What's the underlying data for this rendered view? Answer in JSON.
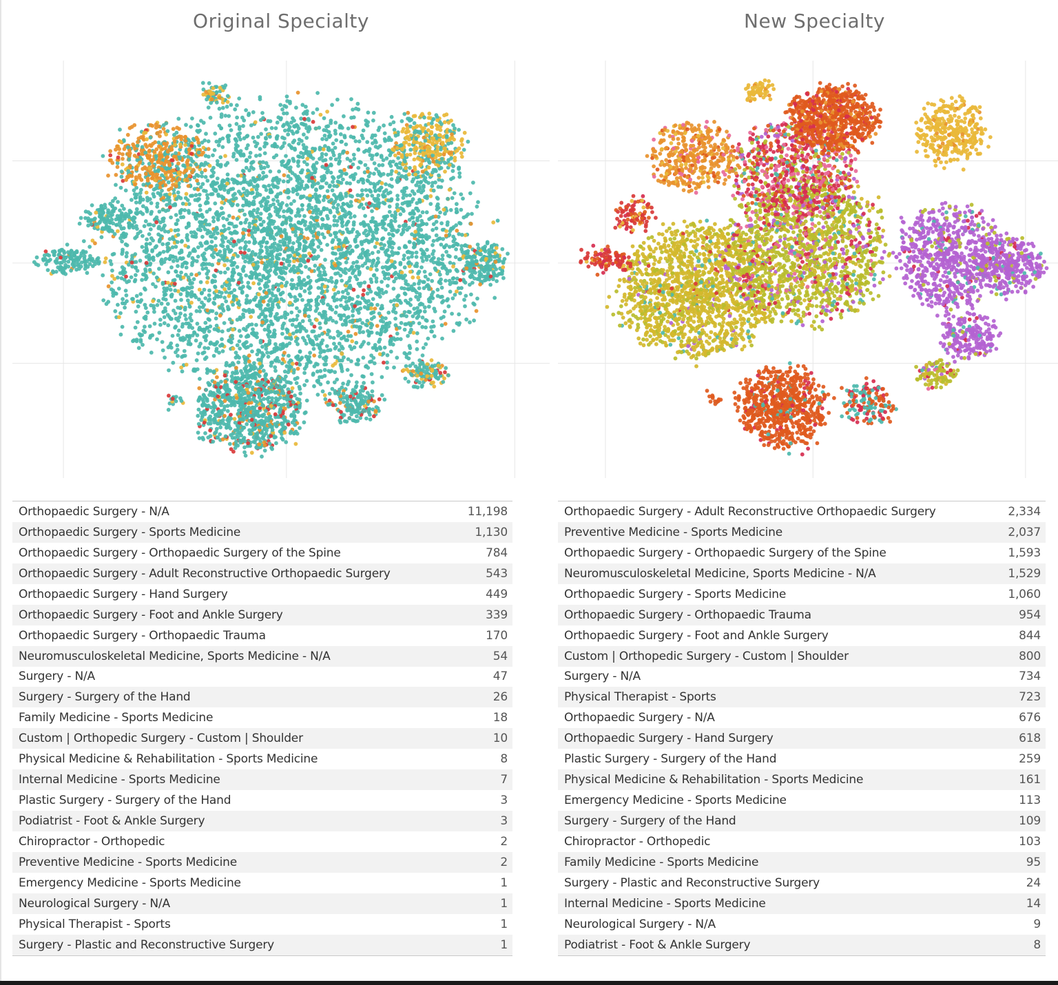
{
  "panels": {
    "left_title": "Original Specialty",
    "right_title": "New Specialty"
  },
  "colors": {
    "teal": "#4db8ac",
    "orange": "#e8922e",
    "gold": "#e9b83a",
    "red": "#d93a3a",
    "dark_orange": "#e05a1e",
    "olive": "#b8bd2e",
    "yellow_olive": "#d4b82e",
    "purple": "#b463d1",
    "pink": "#e86a9a",
    "crimson": "#d62e50",
    "grid": "#e6e6e6"
  },
  "chart_data": [
    {
      "type": "scatter",
      "title": "Original Specialty",
      "xlabel": "",
      "ylabel": "",
      "grid": true,
      "clusters": [
        {
          "cx": 0.52,
          "cy": 0.45,
          "rx": 0.36,
          "ry": 0.34,
          "n": 4200,
          "palette": "original_main"
        },
        {
          "cx": 0.27,
          "cy": 0.23,
          "rx": 0.09,
          "ry": 0.08,
          "n": 380,
          "palette": "original_orange"
        },
        {
          "cx": 0.77,
          "cy": 0.2,
          "rx": 0.07,
          "ry": 0.08,
          "n": 300,
          "palette": "original_gold"
        },
        {
          "cx": 0.38,
          "cy": 0.08,
          "rx": 0.03,
          "ry": 0.03,
          "n": 60,
          "palette": "original_mixed"
        },
        {
          "cx": 0.18,
          "cy": 0.38,
          "rx": 0.05,
          "ry": 0.04,
          "n": 110,
          "palette": "original_main"
        },
        {
          "cx": 0.1,
          "cy": 0.48,
          "rx": 0.06,
          "ry": 0.03,
          "n": 130,
          "palette": "original_main"
        },
        {
          "cx": 0.44,
          "cy": 0.84,
          "rx": 0.1,
          "ry": 0.1,
          "n": 750,
          "palette": "original_lower"
        },
        {
          "cx": 0.64,
          "cy": 0.82,
          "rx": 0.05,
          "ry": 0.05,
          "n": 170,
          "palette": "original_lower"
        },
        {
          "cx": 0.77,
          "cy": 0.75,
          "rx": 0.04,
          "ry": 0.03,
          "n": 110,
          "palette": "original_mixed"
        },
        {
          "cx": 0.3,
          "cy": 0.82,
          "rx": 0.015,
          "ry": 0.015,
          "n": 15,
          "palette": "original_main"
        },
        {
          "cx": 0.88,
          "cy": 0.49,
          "rx": 0.04,
          "ry": 0.05,
          "n": 160,
          "palette": "original_main"
        }
      ],
      "legend_rows": [
        {
          "label": "Orthopaedic Surgery - N/A",
          "value": "11,198"
        },
        {
          "label": "Orthopaedic Surgery - Sports Medicine",
          "value": "1,130"
        },
        {
          "label": "Orthopaedic Surgery - Orthopaedic Surgery of the Spine",
          "value": "784"
        },
        {
          "label": "Orthopaedic Surgery - Adult Reconstructive Orthopaedic Surgery",
          "value": "543"
        },
        {
          "label": "Orthopaedic Surgery - Hand Surgery",
          "value": "449"
        },
        {
          "label": "Orthopaedic Surgery - Foot and Ankle Surgery",
          "value": "339"
        },
        {
          "label": "Orthopaedic Surgery - Orthopaedic Trauma",
          "value": "170"
        },
        {
          "label": "Neuromusculoskeletal Medicine, Sports Medicine - N/A",
          "value": "54"
        },
        {
          "label": "Surgery - N/A",
          "value": "47"
        },
        {
          "label": "Surgery - Surgery of the Hand",
          "value": "26"
        },
        {
          "label": "Family Medicine - Sports Medicine",
          "value": "18"
        },
        {
          "label": "Custom | Orthopedic Surgery - Custom | Shoulder",
          "value": "10"
        },
        {
          "label": "Physical Medicine & Rehabilitation - Sports Medicine",
          "value": "8"
        },
        {
          "label": "Internal Medicine - Sports Medicine",
          "value": "7"
        },
        {
          "label": "Plastic Surgery - Surgery of the Hand",
          "value": "3"
        },
        {
          "label": "Podiatrist - Foot & Ankle Surgery",
          "value": "3"
        },
        {
          "label": "Chiropractor - Orthopedic",
          "value": "2"
        },
        {
          "label": "Preventive Medicine - Sports Medicine",
          "value": "2"
        },
        {
          "label": "Emergency Medicine - Sports Medicine",
          "value": "1"
        },
        {
          "label": "Neurological Surgery - N/A",
          "value": "1"
        },
        {
          "label": "Physical Therapist - Sports",
          "value": "1"
        },
        {
          "label": "Surgery - Plastic and Reconstructive Surgery",
          "value": "1"
        }
      ]
    },
    {
      "type": "scatter",
      "title": "New Specialty",
      "xlabel": "",
      "ylabel": "",
      "grid": true,
      "clusters": [
        {
          "cx": 0.28,
          "cy": 0.55,
          "rx": 0.16,
          "ry": 0.16,
          "n": 1500,
          "palette": "new_yellow"
        },
        {
          "cx": 0.5,
          "cy": 0.45,
          "rx": 0.16,
          "ry": 0.18,
          "n": 1500,
          "palette": "new_center"
        },
        {
          "cx": 0.47,
          "cy": 0.26,
          "rx": 0.13,
          "ry": 0.12,
          "n": 700,
          "palette": "new_pinkred"
        },
        {
          "cx": 0.55,
          "cy": 0.14,
          "rx": 0.09,
          "ry": 0.08,
          "n": 700,
          "palette": "new_darkorange"
        },
        {
          "cx": 0.27,
          "cy": 0.23,
          "rx": 0.09,
          "ry": 0.08,
          "n": 400,
          "palette": "new_orange"
        },
        {
          "cx": 0.79,
          "cy": 0.17,
          "rx": 0.07,
          "ry": 0.08,
          "n": 330,
          "palette": "new_gold"
        },
        {
          "cx": 0.4,
          "cy": 0.07,
          "rx": 0.025,
          "ry": 0.025,
          "n": 60,
          "palette": "new_gold"
        },
        {
          "cx": 0.78,
          "cy": 0.47,
          "rx": 0.1,
          "ry": 0.13,
          "n": 700,
          "palette": "new_purple"
        },
        {
          "cx": 0.9,
          "cy": 0.49,
          "rx": 0.07,
          "ry": 0.07,
          "n": 350,
          "palette": "new_purple"
        },
        {
          "cx": 0.15,
          "cy": 0.37,
          "rx": 0.04,
          "ry": 0.04,
          "n": 90,
          "palette": "new_red"
        },
        {
          "cx": 0.1,
          "cy": 0.48,
          "rx": 0.05,
          "ry": 0.03,
          "n": 100,
          "palette": "new_red"
        },
        {
          "cx": 0.45,
          "cy": 0.83,
          "rx": 0.09,
          "ry": 0.1,
          "n": 700,
          "palette": "new_lower"
        },
        {
          "cx": 0.62,
          "cy": 0.82,
          "rx": 0.05,
          "ry": 0.05,
          "n": 160,
          "palette": "new_lower_mixed"
        },
        {
          "cx": 0.76,
          "cy": 0.75,
          "rx": 0.04,
          "ry": 0.03,
          "n": 100,
          "palette": "new_center"
        },
        {
          "cx": 0.31,
          "cy": 0.81,
          "rx": 0.015,
          "ry": 0.015,
          "n": 14,
          "palette": "new_lower"
        },
        {
          "cx": 0.82,
          "cy": 0.66,
          "rx": 0.06,
          "ry": 0.05,
          "n": 200,
          "palette": "new_purple"
        }
      ],
      "legend_rows": [
        {
          "label": "Orthopaedic Surgery - Adult Reconstructive Orthopaedic Surgery",
          "value": "2,334"
        },
        {
          "label": "Preventive Medicine - Sports Medicine",
          "value": "2,037"
        },
        {
          "label": "Orthopaedic Surgery - Orthopaedic Surgery of the Spine",
          "value": "1,593"
        },
        {
          "label": "Neuromusculoskeletal Medicine, Sports Medicine - N/A",
          "value": "1,529"
        },
        {
          "label": "Orthopaedic Surgery - Sports Medicine",
          "value": "1,060"
        },
        {
          "label": "Orthopaedic Surgery - Orthopaedic Trauma",
          "value": "954"
        },
        {
          "label": "Orthopaedic Surgery - Foot and Ankle Surgery",
          "value": "844"
        },
        {
          "label": "Custom | Orthopedic Surgery - Custom | Shoulder",
          "value": "800"
        },
        {
          "label": "Surgery - N/A",
          "value": "734"
        },
        {
          "label": "Physical Therapist - Sports",
          "value": "723"
        },
        {
          "label": "Orthopaedic Surgery - N/A",
          "value": "676"
        },
        {
          "label": "Orthopaedic Surgery - Hand Surgery",
          "value": "618"
        },
        {
          "label": "Plastic Surgery - Surgery of the Hand",
          "value": "259"
        },
        {
          "label": "Physical Medicine & Rehabilitation - Sports Medicine",
          "value": "161"
        },
        {
          "label": "Emergency Medicine - Sports Medicine",
          "value": "113"
        },
        {
          "label": "Surgery - Surgery of the Hand",
          "value": "109"
        },
        {
          "label": "Chiropractor - Orthopedic",
          "value": "103"
        },
        {
          "label": "Family Medicine - Sports Medicine",
          "value": "95"
        },
        {
          "label": "Surgery - Plastic and Reconstructive Surgery",
          "value": "24"
        },
        {
          "label": "Internal Medicine - Sports Medicine",
          "value": "14"
        },
        {
          "label": "Neurological Surgery - N/A",
          "value": "9"
        },
        {
          "label": "Podiatrist - Foot & Ankle Surgery",
          "value": "8"
        }
      ]
    }
  ]
}
